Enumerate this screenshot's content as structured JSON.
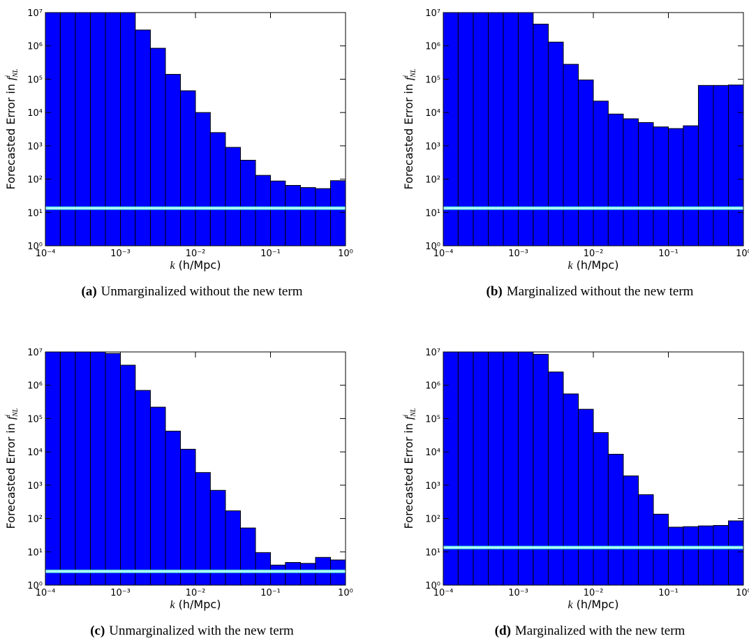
{
  "chart_data": [
    {
      "type": "histogram",
      "caption_tag": "(a)",
      "caption": "Unmarginalized without the new term",
      "ylabel": "Forecasted Error in",
      "ylabel_symbol": "f",
      "ylabel_sup": "i",
      "ylabel_sub": "NL",
      "xlabel_symbol": "k",
      "xlabel": "(h/Mpc)",
      "bins": [
        0.0001,
        0.000158,
        0.000251,
        0.000398,
        0.000631,
        0.001,
        0.00158,
        0.00251,
        0.00398,
        0.00631,
        0.01,
        0.0158,
        0.0251,
        0.0398,
        0.0631,
        0.1,
        0.158,
        0.251,
        0.398,
        0.631,
        1
      ],
      "counts": [
        10000000,
        10000000,
        10000000,
        10000000,
        10000000,
        10000000,
        3000000,
        850000,
        140000,
        45000,
        10000,
        2500,
        900,
        370,
        130,
        88,
        65,
        56,
        52,
        90
      ],
      "hline": 13.5,
      "color": "#0000ff",
      "hline_color": "#b8ffff",
      "xlog": true,
      "ylog": true,
      "xlim": [
        0.0001,
        1
      ],
      "ylim": [
        1,
        10000000
      ],
      "xticks": [
        {
          "value": 0.0001,
          "label": "10⁻⁴"
        },
        {
          "value": 0.001,
          "label": "10⁻³"
        },
        {
          "value": 0.01,
          "label": "10⁻²"
        },
        {
          "value": 0.1,
          "label": "10⁻¹"
        },
        {
          "value": 1,
          "label": "10⁰"
        }
      ],
      "yticks": [
        {
          "value": 1,
          "label": "10⁰"
        },
        {
          "value": 10,
          "label": "10¹"
        },
        {
          "value": 100,
          "label": "10²"
        },
        {
          "value": 1000,
          "label": "10³"
        },
        {
          "value": 10000,
          "label": "10⁴"
        },
        {
          "value": 100000,
          "label": "10⁵"
        },
        {
          "value": 1000000,
          "label": "10⁶"
        },
        {
          "value": 10000000,
          "label": "10⁷"
        }
      ]
    },
    {
      "type": "histogram",
      "caption_tag": "(b)",
      "caption": "Marginalized without the new term",
      "ylabel": "Forecasted Error in",
      "ylabel_symbol": "f",
      "ylabel_sup": "i",
      "ylabel_sub": "NL",
      "xlabel_symbol": "k",
      "xlabel": "(h/Mpc)",
      "bins": [
        0.0001,
        0.000158,
        0.000251,
        0.000398,
        0.000631,
        0.001,
        0.00158,
        0.00251,
        0.00398,
        0.00631,
        0.01,
        0.0158,
        0.0251,
        0.0398,
        0.0631,
        0.1,
        0.158,
        0.251,
        0.398,
        0.631,
        1
      ],
      "counts": [
        10000000,
        10000000,
        10000000,
        10000000,
        10000000,
        10000000,
        4500000,
        1300000,
        280000,
        95000,
        22000,
        9000,
        6500,
        5000,
        3700,
        3300,
        4000,
        65000,
        65000,
        67000
      ],
      "hline": 13.5,
      "color": "#0000ff",
      "hline_color": "#b8ffff",
      "xlog": true,
      "ylog": true,
      "xlim": [
        0.0001,
        1
      ],
      "ylim": [
        1,
        10000000
      ],
      "xticks": [
        {
          "value": 0.0001,
          "label": "10⁻⁴"
        },
        {
          "value": 0.001,
          "label": "10⁻³"
        },
        {
          "value": 0.01,
          "label": "10⁻²"
        },
        {
          "value": 0.1,
          "label": "10⁻¹"
        },
        {
          "value": 1,
          "label": "10⁰"
        }
      ],
      "yticks": [
        {
          "value": 1,
          "label": "10⁰"
        },
        {
          "value": 10,
          "label": "10¹"
        },
        {
          "value": 100,
          "label": "10²"
        },
        {
          "value": 1000,
          "label": "10³"
        },
        {
          "value": 10000,
          "label": "10⁴"
        },
        {
          "value": 100000,
          "label": "10⁵"
        },
        {
          "value": 1000000,
          "label": "10⁶"
        },
        {
          "value": 10000000,
          "label": "10⁷"
        }
      ]
    },
    {
      "type": "histogram",
      "caption_tag": "(c)",
      "caption": "Unmarginalized with the new term",
      "ylabel": "Forecasted Error in",
      "ylabel_symbol": "f",
      "ylabel_sup": "i",
      "ylabel_sub": "NL",
      "xlabel_symbol": "k",
      "xlabel": "(h/Mpc)",
      "bins": [
        0.0001,
        0.000158,
        0.000251,
        0.000398,
        0.000631,
        0.001,
        0.00158,
        0.00251,
        0.00398,
        0.00631,
        0.01,
        0.0158,
        0.0251,
        0.0398,
        0.0631,
        0.1,
        0.158,
        0.251,
        0.398,
        0.631,
        1
      ],
      "counts": [
        10000000,
        10000000,
        10000000,
        10000000,
        9000000,
        4000000,
        700000,
        220000,
        42000,
        12000,
        2400,
        700,
        170,
        52,
        9.5,
        4,
        4.8,
        4.5,
        6.8,
        5.7
      ],
      "hline": 2.6,
      "color": "#0000ff",
      "hline_color": "#b8ffff",
      "xlog": true,
      "ylog": true,
      "xlim": [
        0.0001,
        1
      ],
      "ylim": [
        1,
        10000000
      ],
      "xticks": [
        {
          "value": 0.0001,
          "label": "10⁻⁴"
        },
        {
          "value": 0.001,
          "label": "10⁻³"
        },
        {
          "value": 0.01,
          "label": "10⁻²"
        },
        {
          "value": 0.1,
          "label": "10⁻¹"
        },
        {
          "value": 1,
          "label": "10⁰"
        }
      ],
      "yticks": [
        {
          "value": 1,
          "label": "10⁰"
        },
        {
          "value": 10,
          "label": "10¹"
        },
        {
          "value": 100,
          "label": "10²"
        },
        {
          "value": 1000,
          "label": "10³"
        },
        {
          "value": 10000,
          "label": "10⁴"
        },
        {
          "value": 100000,
          "label": "10⁵"
        },
        {
          "value": 1000000,
          "label": "10⁶"
        },
        {
          "value": 10000000,
          "label": "10⁷"
        }
      ]
    },
    {
      "type": "histogram",
      "caption_tag": "(d)",
      "caption": "Marginalized with the new term",
      "ylabel": "Forecasted Error in",
      "ylabel_symbol": "f",
      "ylabel_sup": "i",
      "ylabel_sub": "NL",
      "xlabel_symbol": "k",
      "xlabel": "(h/Mpc)",
      "bins": [
        0.0001,
        0.000158,
        0.000251,
        0.000398,
        0.000631,
        0.001,
        0.00158,
        0.00251,
        0.00398,
        0.00631,
        0.01,
        0.0158,
        0.0251,
        0.0398,
        0.0631,
        0.1,
        0.158,
        0.251,
        0.398,
        0.631,
        1
      ],
      "counts": [
        10000000,
        10000000,
        10000000,
        10000000,
        10000000,
        10000000,
        8500000,
        2500000,
        550000,
        190000,
        38000,
        8500,
        1900,
        520,
        135,
        55,
        57,
        60,
        62,
        85
      ],
      "hline": 13.5,
      "color": "#0000ff",
      "hline_color": "#b8ffff",
      "xlog": true,
      "ylog": true,
      "xlim": [
        0.0001,
        1
      ],
      "ylim": [
        1,
        10000000
      ],
      "xticks": [
        {
          "value": 0.0001,
          "label": "10⁻⁴"
        },
        {
          "value": 0.001,
          "label": "10⁻³"
        },
        {
          "value": 0.01,
          "label": "10⁻²"
        },
        {
          "value": 0.1,
          "label": "10⁻¹"
        },
        {
          "value": 1,
          "label": "10⁰"
        }
      ],
      "yticks": [
        {
          "value": 1,
          "label": "10⁰"
        },
        {
          "value": 10,
          "label": "10¹"
        },
        {
          "value": 100,
          "label": "10²"
        },
        {
          "value": 1000,
          "label": "10³"
        },
        {
          "value": 10000,
          "label": "10⁴"
        },
        {
          "value": 100000,
          "label": "10⁵"
        },
        {
          "value": 1000000,
          "label": "10⁶"
        },
        {
          "value": 10000000,
          "label": "10⁷"
        }
      ]
    }
  ]
}
